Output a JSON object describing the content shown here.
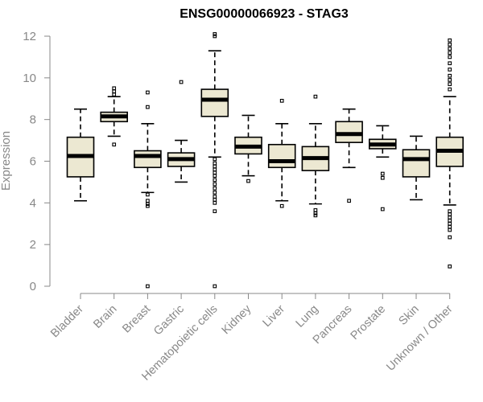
{
  "chart_data": {
    "type": "boxplot",
    "title": "ENSG00000066923 - STAG3",
    "xlabel": "",
    "ylabel": "Expression",
    "ylim": [
      0,
      12
    ],
    "yticks": [
      0,
      2,
      4,
      6,
      8,
      10,
      12
    ],
    "grid": false,
    "box_fill": "#ece8d2",
    "box_stroke": "#000000",
    "categories": [
      "Bladder",
      "Brain",
      "Breast",
      "Gastric",
      "Hematopoietic cells",
      "Kidney",
      "Liver",
      "Lung",
      "Pancreas",
      "Prostate",
      "Skin",
      "Unknown / Other"
    ],
    "boxes": [
      {
        "category": "Bladder",
        "whisker_low": 4.1,
        "q1": 5.25,
        "median": 6.25,
        "q3": 7.15,
        "whisker_high": 8.5,
        "outliers": []
      },
      {
        "category": "Brain",
        "whisker_low": 7.2,
        "q1": 7.9,
        "median": 8.15,
        "q3": 8.35,
        "whisker_high": 9.1,
        "outliers": [
          6.8,
          9.2,
          9.35,
          9.5
        ]
      },
      {
        "category": "Breast",
        "whisker_low": 4.5,
        "q1": 5.7,
        "median": 6.25,
        "q3": 6.5,
        "whisker_high": 7.8,
        "outliers": [
          9.3,
          8.6,
          4.4,
          4.1,
          3.95,
          3.85,
          0.0
        ]
      },
      {
        "category": "Gastric",
        "whisker_low": 5.0,
        "q1": 5.75,
        "median": 6.1,
        "q3": 6.4,
        "whisker_high": 7.0,
        "outliers": [
          9.8
        ]
      },
      {
        "category": "Hematopoietic cells",
        "whisker_low": 6.2,
        "q1": 8.15,
        "median": 8.95,
        "q3": 9.45,
        "whisker_high": 11.3,
        "outliers": [
          12.1,
          12.0,
          6.1,
          5.9,
          5.75,
          5.6,
          5.45,
          5.3,
          5.1,
          4.9,
          4.7,
          4.5,
          4.3,
          4.15,
          4.0,
          3.6,
          0.0
        ]
      },
      {
        "category": "Kidney",
        "whisker_low": 5.3,
        "q1": 6.35,
        "median": 6.7,
        "q3": 7.15,
        "whisker_high": 8.2,
        "outliers": [
          5.05
        ]
      },
      {
        "category": "Liver",
        "whisker_low": 4.1,
        "q1": 5.7,
        "median": 6.0,
        "q3": 6.8,
        "whisker_high": 7.8,
        "outliers": [
          8.9,
          3.85
        ]
      },
      {
        "category": "Lung",
        "whisker_low": 3.95,
        "q1": 5.55,
        "median": 6.15,
        "q3": 6.7,
        "whisker_high": 7.8,
        "outliers": [
          9.1,
          3.65,
          3.5,
          3.4
        ]
      },
      {
        "category": "Pancreas",
        "whisker_low": 5.7,
        "q1": 6.9,
        "median": 7.3,
        "q3": 7.9,
        "whisker_high": 8.5,
        "outliers": [
          4.1
        ]
      },
      {
        "category": "Prostate",
        "whisker_low": 6.2,
        "q1": 6.6,
        "median": 6.8,
        "q3": 7.05,
        "whisker_high": 7.7,
        "outliers": [
          5.4,
          5.2,
          3.7
        ]
      },
      {
        "category": "Skin",
        "whisker_low": 4.15,
        "q1": 5.25,
        "median": 6.1,
        "q3": 6.55,
        "whisker_high": 7.2,
        "outliers": []
      },
      {
        "category": "Unknown / Other",
        "whisker_low": 3.9,
        "q1": 5.75,
        "median": 6.5,
        "q3": 7.15,
        "whisker_high": 9.1,
        "outliers": [
          11.8,
          11.6,
          11.4,
          11.2,
          11.0,
          10.7,
          10.4,
          10.1,
          9.9,
          9.7,
          9.45,
          3.6,
          3.45,
          3.3,
          3.15,
          3.0,
          2.85,
          2.7,
          2.35,
          0.95
        ]
      }
    ]
  }
}
